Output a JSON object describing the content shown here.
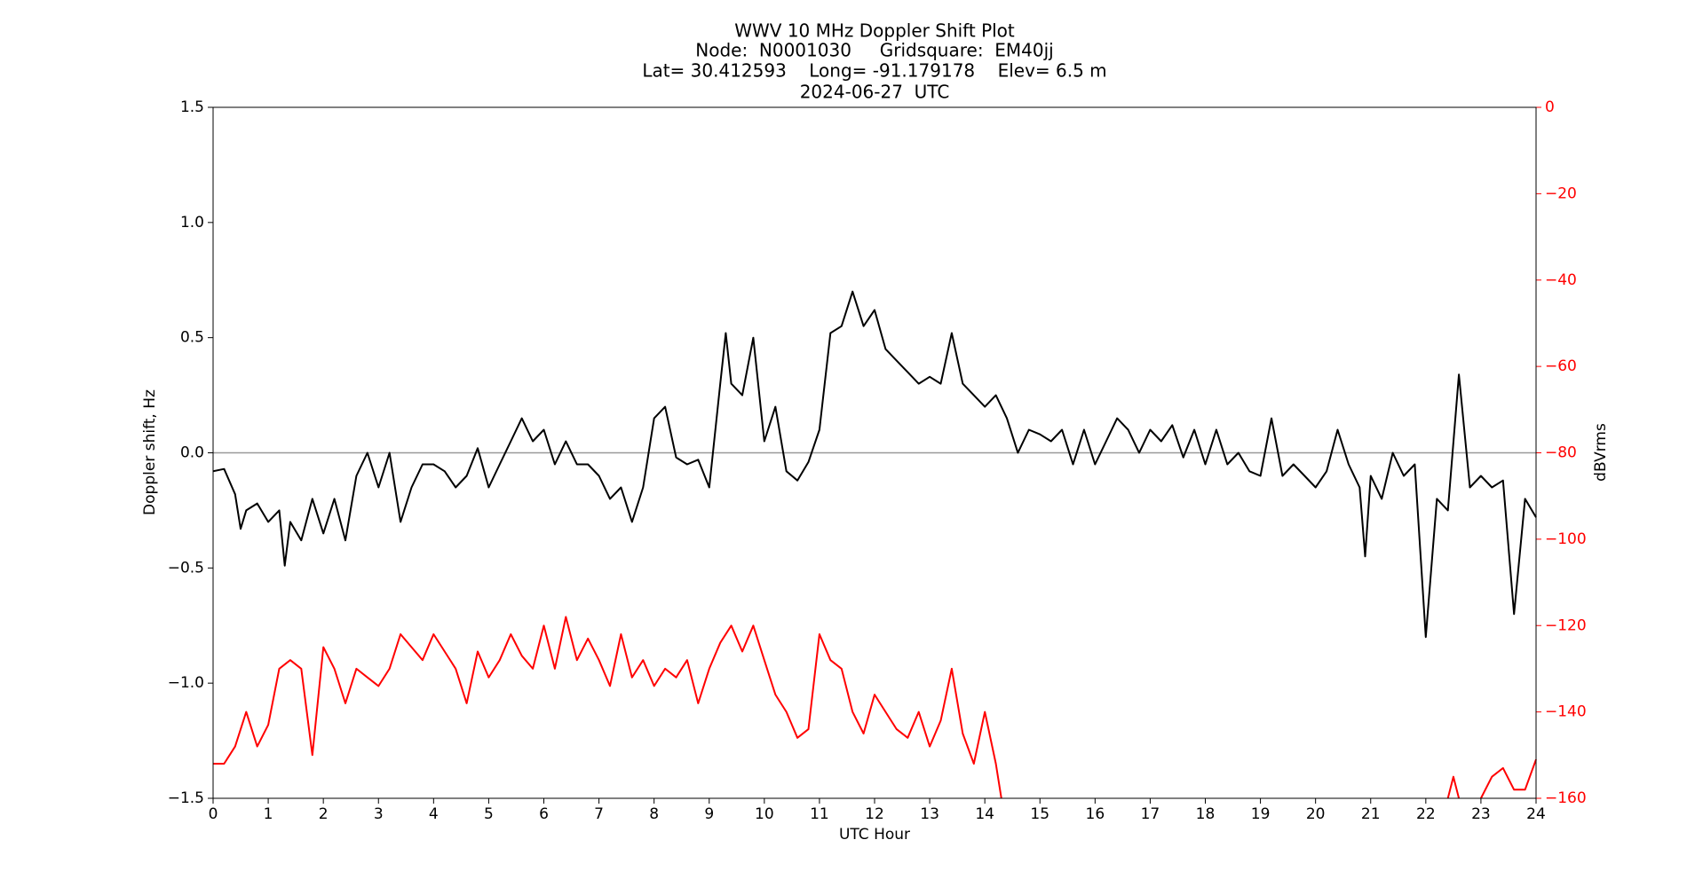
{
  "chart_data": {
    "type": "line",
    "title_lines": [
      "WWV 10 MHz Doppler Shift Plot",
      "Node:  N0001030     Gridsquare:  EM40jj",
      "Lat= 30.412593    Long= -91.179178    Elev= 6.5 m",
      "2024-06-27  UTC"
    ],
    "xlabel": "UTC Hour",
    "ylabel": "Doppler shift, Hz",
    "y2label": "dBVrms",
    "xlim": [
      0,
      24
    ],
    "xticks": [
      0,
      1,
      2,
      3,
      4,
      5,
      6,
      7,
      8,
      9,
      10,
      11,
      12,
      13,
      14,
      15,
      16,
      17,
      18,
      19,
      20,
      21,
      22,
      23,
      24
    ],
    "ylim": [
      -1.5,
      1.5
    ],
    "yticks": [
      {
        "value": -1.5,
        "label": "−1.5"
      },
      {
        "value": -1,
        "label": "−1.0"
      },
      {
        "value": -0.5,
        "label": "−0.5"
      },
      {
        "value": 0,
        "label": "0.0"
      },
      {
        "value": 0.5,
        "label": "0.5"
      },
      {
        "value": 1,
        "label": "1.0"
      },
      {
        "value": 1.5,
        "label": "1.5"
      }
    ],
    "y2lim": [
      -160,
      0
    ],
    "y2ticks": [
      {
        "value": -160,
        "label": "−160"
      },
      {
        "value": -140,
        "label": "−140"
      },
      {
        "value": -120,
        "label": "−120"
      },
      {
        "value": -100,
        "label": "−100"
      },
      {
        "value": -80,
        "label": "−80"
      },
      {
        "value": -60,
        "label": "−60"
      },
      {
        "value": -40,
        "label": "−40"
      },
      {
        "value": -20,
        "label": "−20"
      },
      0
    ],
    "reference_line": 0,
    "reference_color": "#999999",
    "y2_color": "#ff0000",
    "series": [
      {
        "color": "#000000",
        "axis": "y",
        "x": [
          0,
          0.2,
          0.4,
          0.5,
          0.6,
          0.8,
          1.0,
          1.2,
          1.3,
          1.4,
          1.6,
          1.8,
          2.0,
          2.2,
          2.4,
          2.6,
          2.8,
          3.0,
          3.2,
          3.4,
          3.6,
          3.8,
          4.0,
          4.2,
          4.4,
          4.6,
          4.8,
          5.0,
          5.2,
          5.4,
          5.6,
          5.8,
          6.0,
          6.2,
          6.4,
          6.6,
          6.8,
          7.0,
          7.2,
          7.4,
          7.6,
          7.8,
          8.0,
          8.2,
          8.4,
          8.6,
          8.8,
          9.0,
          9.2,
          9.3,
          9.4,
          9.6,
          9.8,
          10.0,
          10.2,
          10.4,
          10.6,
          10.8,
          11.0,
          11.2,
          11.4,
          11.6,
          11.8,
          12.0,
          12.2,
          12.4,
          12.6,
          12.8,
          13.0,
          13.2,
          13.4,
          13.6,
          13.8,
          14.0,
          14.2,
          14.4,
          14.6,
          14.8,
          15.0,
          15.2,
          15.4,
          15.6,
          15.8,
          16.0,
          16.2,
          16.4,
          16.6,
          16.8,
          17.0,
          17.2,
          17.4,
          17.6,
          17.8,
          18.0,
          18.2,
          18.4,
          18.6,
          18.8,
          19.0,
          19.2,
          19.4,
          19.6,
          19.8,
          20.0,
          20.2,
          20.4,
          20.6,
          20.8,
          20.9,
          21.0,
          21.2,
          21.4,
          21.6,
          21.8,
          22.0,
          22.2,
          22.4,
          22.6,
          22.8,
          23.0,
          23.2,
          23.4,
          23.6,
          23.8,
          24.0
        ],
        "values": [
          -0.08,
          -0.07,
          -0.18,
          -0.33,
          -0.25,
          -0.22,
          -0.3,
          -0.25,
          -0.49,
          -0.3,
          -0.38,
          -0.2,
          -0.35,
          -0.2,
          -0.38,
          -0.1,
          0.0,
          -0.15,
          0.0,
          -0.3,
          -0.15,
          -0.05,
          -0.05,
          -0.08,
          -0.15,
          -0.1,
          0.02,
          -0.15,
          -0.05,
          0.05,
          0.15,
          0.05,
          0.1,
          -0.05,
          0.05,
          -0.05,
          -0.05,
          -0.1,
          -0.2,
          -0.15,
          -0.3,
          -0.15,
          0.15,
          0.2,
          -0.02,
          -0.05,
          -0.03,
          -0.15,
          0.3,
          0.52,
          0.3,
          0.25,
          0.5,
          0.05,
          0.2,
          -0.08,
          -0.12,
          -0.04,
          0.1,
          0.52,
          0.55,
          0.7,
          0.55,
          0.62,
          0.45,
          0.4,
          0.35,
          0.3,
          0.33,
          0.3,
          0.52,
          0.3,
          0.25,
          0.2,
          0.25,
          0.15,
          0.0,
          0.1,
          0.08,
          0.05,
          0.1,
          -0.05,
          0.1,
          -0.05,
          0.05,
          0.15,
          0.1,
          0.0,
          0.1,
          0.05,
          0.12,
          -0.02,
          0.1,
          -0.05,
          0.1,
          -0.05,
          0.0,
          -0.08,
          -0.1,
          0.15,
          -0.1,
          -0.05,
          -0.1,
          -0.15,
          -0.08,
          0.1,
          -0.05,
          -0.15,
          -0.45,
          -0.1,
          -0.2,
          0.0,
          -0.1,
          -0.05,
          -0.8,
          -0.2,
          -0.25,
          0.34,
          -0.15,
          -0.1,
          -0.15,
          -0.12,
          -0.7,
          -0.2,
          -0.28
        ]
      },
      {
        "color": "#ff0000",
        "axis": "y2",
        "x": [
          0,
          0.2,
          0.4,
          0.6,
          0.8,
          1.0,
          1.2,
          1.4,
          1.6,
          1.8,
          2.0,
          2.2,
          2.4,
          2.6,
          2.8,
          3.0,
          3.2,
          3.4,
          3.6,
          3.8,
          4.0,
          4.2,
          4.4,
          4.6,
          4.8,
          5.0,
          5.2,
          5.4,
          5.6,
          5.8,
          6.0,
          6.2,
          6.4,
          6.6,
          6.8,
          7.0,
          7.2,
          7.4,
          7.6,
          7.8,
          8.0,
          8.2,
          8.4,
          8.6,
          8.8,
          9.0,
          9.2,
          9.4,
          9.6,
          9.8,
          10.0,
          10.2,
          10.4,
          10.6,
          10.8,
          11.0,
          11.2,
          11.4,
          11.6,
          11.8,
          12.0,
          12.2,
          12.4,
          12.6,
          12.8,
          13.0,
          13.2,
          13.4,
          13.6,
          13.8,
          14.0,
          14.2,
          14.3,
          18.0,
          22.4,
          22.5,
          22.6,
          22.8,
          23.0,
          23.2,
          23.4,
          23.6,
          23.8,
          24.0
        ],
        "values": [
          -152,
          -152,
          -148,
          -140,
          -148,
          -143,
          -130,
          -128,
          -130,
          -150,
          -125,
          -130,
          -138,
          -130,
          -132,
          -134,
          -130,
          -122,
          -125,
          -128,
          -122,
          -126,
          -130,
          -138,
          -126,
          -132,
          -128,
          -122,
          -127,
          -130,
          -120,
          -130,
          -118,
          -128,
          -123,
          -128,
          -134,
          -122,
          -132,
          -128,
          -134,
          -130,
          -132,
          -128,
          -138,
          -130,
          -124,
          -120,
          -126,
          -120,
          -128,
          -136,
          -140,
          -146,
          -144,
          -122,
          -128,
          -130,
          -140,
          -145,
          -136,
          -140,
          -144,
          -146,
          -140,
          -148,
          -142,
          -130,
          -145,
          -152,
          -140,
          -152,
          -160,
          null,
          -160,
          -155,
          -160,
          null,
          -160,
          -155,
          -153,
          -158,
          -158,
          -151
        ]
      }
    ]
  }
}
